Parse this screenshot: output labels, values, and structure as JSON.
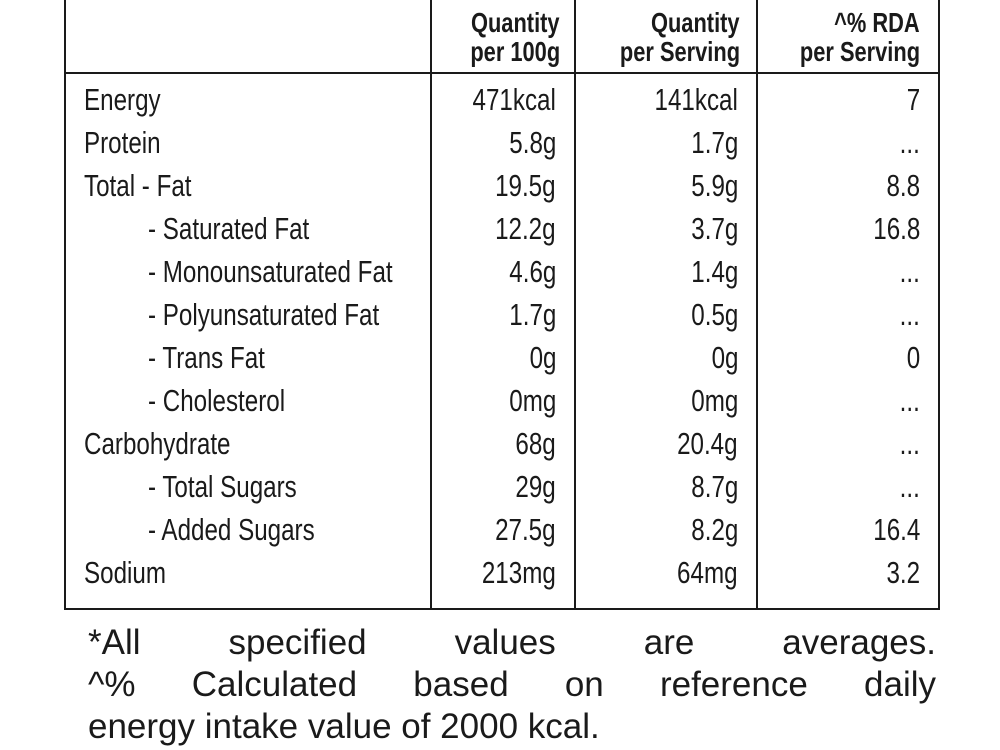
{
  "table": {
    "headers": {
      "per100": [
        "Quantity",
        "per 100g"
      ],
      "perServing": [
        "Quantity",
        "per Serving"
      ],
      "rda": [
        "^% RDA",
        "per Serving"
      ]
    },
    "rows": [
      {
        "nutrient": "Energy",
        "per100": "471kcal",
        "perServing": "141kcal",
        "rda": "7",
        "indent": false
      },
      {
        "nutrient": "Protein",
        "per100": "5.8g",
        "perServing": "1.7g",
        "rda": "...",
        "indent": false
      },
      {
        "nutrient": "Total - Fat",
        "per100": "19.5g",
        "perServing": "5.9g",
        "rda": "8.8",
        "indent": false
      },
      {
        "nutrient": "- Saturated Fat",
        "per100": "12.2g",
        "perServing": "3.7g",
        "rda": "16.8",
        "indent": true
      },
      {
        "nutrient": "- Monounsaturated Fat",
        "per100": "4.6g",
        "perServing": "1.4g",
        "rda": "...",
        "indent": true
      },
      {
        "nutrient": "- Polyunsaturated Fat",
        "per100": "1.7g",
        "perServing": "0.5g",
        "rda": "...",
        "indent": true
      },
      {
        "nutrient": "- Trans Fat",
        "per100": "0g",
        "perServing": "0g",
        "rda": "0",
        "indent": true
      },
      {
        "nutrient": "- Cholesterol",
        "per100": "0mg",
        "perServing": "0mg",
        "rda": "...",
        "indent": true
      },
      {
        "nutrient": "Carbohydrate",
        "per100": "68g",
        "perServing": "20.4g",
        "rda": "...",
        "indent": false
      },
      {
        "nutrient": "- Total Sugars",
        "per100": "29g",
        "perServing": "8.7g",
        "rda": "...",
        "indent": true
      },
      {
        "nutrient": "- Added Sugars",
        "per100": "27.5g",
        "perServing": "8.2g",
        "rda": "16.4",
        "indent": true
      },
      {
        "nutrient": "Sodium",
        "per100": "213mg",
        "perServing": "64mg",
        "rda": "3.2",
        "indent": false
      }
    ]
  },
  "footnote": {
    "lines": [
      "*All specified values are averages.",
      "^% Calculated based on reference daily",
      "energy intake value of 2000 kcal."
    ]
  }
}
